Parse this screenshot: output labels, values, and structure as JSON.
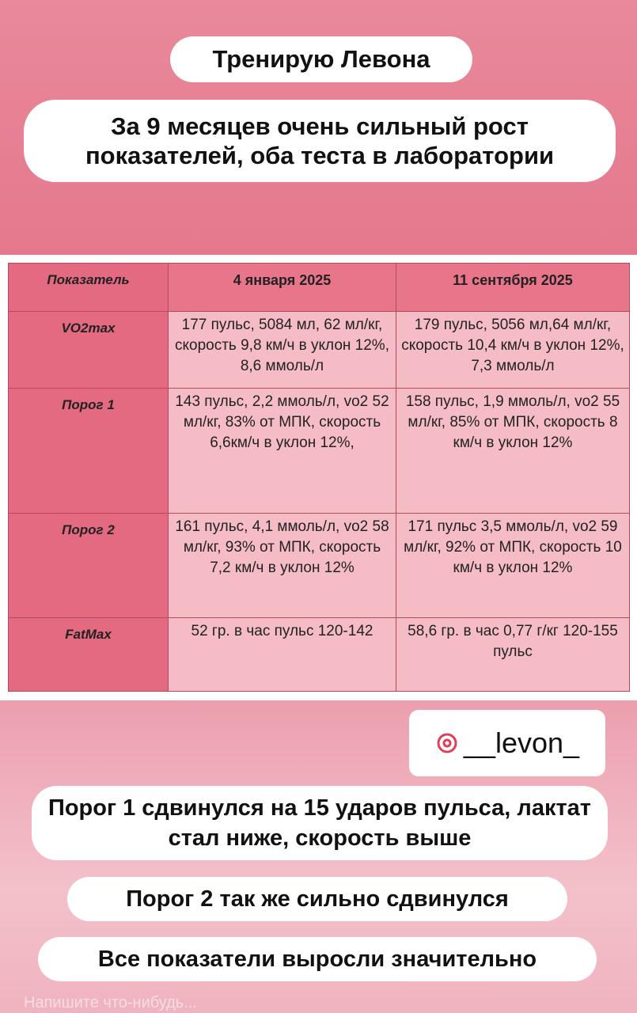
{
  "header": {
    "title": "Тренирую Левона",
    "subtitle": "За 9 месяцев очень сильный рост показателей, оба теста в лаборатории"
  },
  "table": {
    "columns": [
      "Показатель",
      "4 января 2025",
      "11 сентября 2025"
    ],
    "rows": [
      [
        "VO2max",
        "177 пульс, 5084 мл, 62 мл/кг, скорость 9,8 км/ч в уклон 12%, 8,6 ммоль/л",
        "179 пульс, 5056 мл,64 мл/кг, скорость 10,4 км/ч в уклон 12%, 7,3 ммоль/л"
      ],
      [
        "Порог 1",
        "143 пульс, 2,2 ммоль/л, vo2 52 мл/кг, 83% от МПК, скорость 6,6км/ч в уклон 12%,",
        "158 пульс, 1,9 ммоль/л, vo2 55 мл/кг, 85% от МПК, скорость 8 км/ч в уклон 12%"
      ],
      [
        "Порог 2",
        "161 пульс, 4,1 ммоль/л, vo2 58 мл/кг, 93% от МПК, скорость 7,2 км/ч в уклон 12%",
        "171 пульс 3,5 ммоль/л, vo2 59 мл/кг, 92% от МПК, скорость 10 км/ч в уклон 12%"
      ],
      [
        "FatMax",
        "52 гр. в час пульс 120-142",
        "58,6 гр. в час 0,77 г/кг 120-155 пульс"
      ]
    ]
  },
  "handle": "__levon_",
  "notes": [
    "Порог 1 сдвинулся на 15 ударов пульса, лактат стал ниже, скорость выше",
    "Порог 2 так же сильно сдвинулся",
    "Все показатели выросли значительно"
  ],
  "input_placeholder": "Напишите что-нибудь..."
}
